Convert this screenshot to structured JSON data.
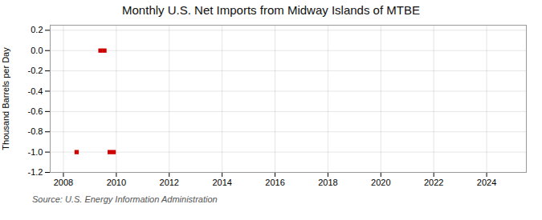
{
  "chart_data": {
    "type": "scatter",
    "title": "Monthly U.S. Net Imports from Midway Islands of MTBE",
    "ylabel": "Thousand Barrels per Day",
    "source": "Source: U.S. Energy Information Administration",
    "x": [
      2008.5,
      2009.4,
      2009.55,
      2009.75,
      2009.9
    ],
    "values": [
      -1.0,
      0.0,
      0.0,
      -1.0,
      -1.0
    ],
    "color": "#cc0000",
    "marker": "square",
    "xlim": [
      2007.5,
      2025.5
    ],
    "ylim": [
      -1.2,
      0.25
    ],
    "xticks": [
      2008,
      2010,
      2012,
      2014,
      2016,
      2018,
      2020,
      2022,
      2024
    ],
    "yticks": [
      0.2,
      {
        "value": 0.0,
        "label": "0.0"
      },
      -0.2,
      -0.4,
      -0.6,
      -0.8,
      {
        "value": -1.0,
        "label": "-1.0"
      },
      -1.2
    ],
    "grid": true
  }
}
